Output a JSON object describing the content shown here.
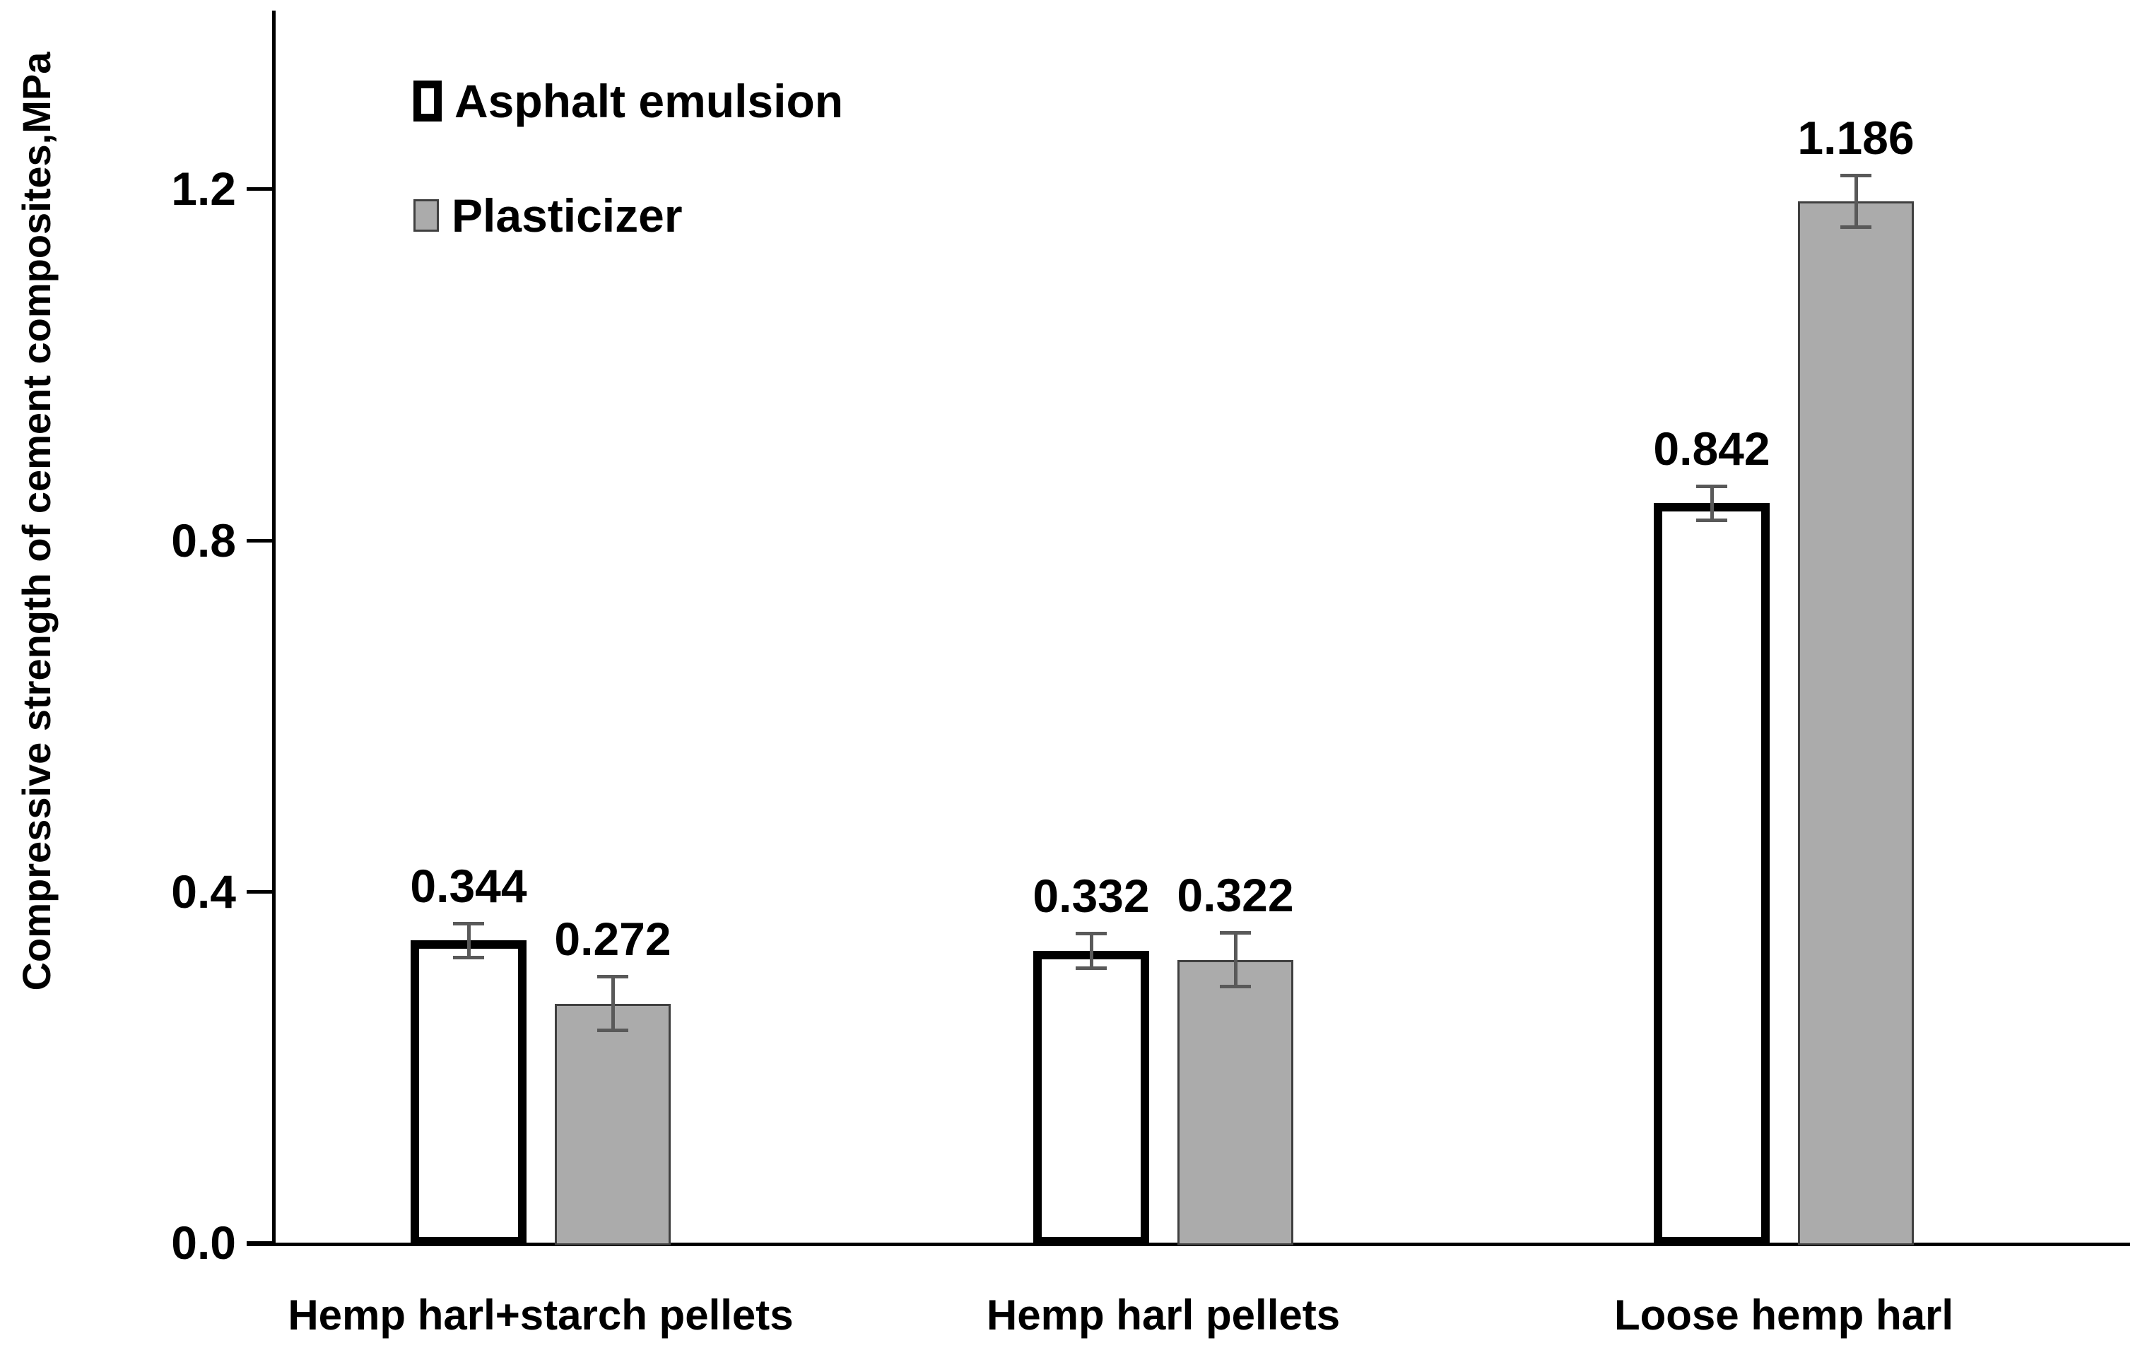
{
  "chart_data": {
    "type": "bar",
    "title": "",
    "xlabel": "",
    "ylabel": "Compressive strength of cement composites,MPa",
    "unit": "MPa",
    "categories": [
      "Hemp harl+starch pellets",
      "Hemp harl pellets",
      "Loose hemp harl"
    ],
    "series": [
      {
        "name": "Asphalt emulsion",
        "fill": "#FFFFFF",
        "border": "#000000",
        "values": [
          0.344,
          0.332,
          0.842
        ],
        "errors": [
          0.02,
          0.02,
          0.02
        ]
      },
      {
        "name": "Plasticizer",
        "fill": "#ABABAB",
        "border": "#404040",
        "values": [
          0.272,
          0.322,
          1.186
        ],
        "errors": [
          0.031,
          0.031,
          0.03
        ]
      }
    ],
    "value_label_decimals": 3,
    "yticks": [
      "0.0",
      "0.4",
      "0.8",
      "1.2"
    ],
    "ytick_values": [
      0.0,
      0.4,
      0.8,
      1.2
    ],
    "ylim": [
      0,
      1.4
    ],
    "grid": false,
    "legend_position": "top-left-inside",
    "error_bar_color": "#595959",
    "axis_color": "#000000"
  }
}
